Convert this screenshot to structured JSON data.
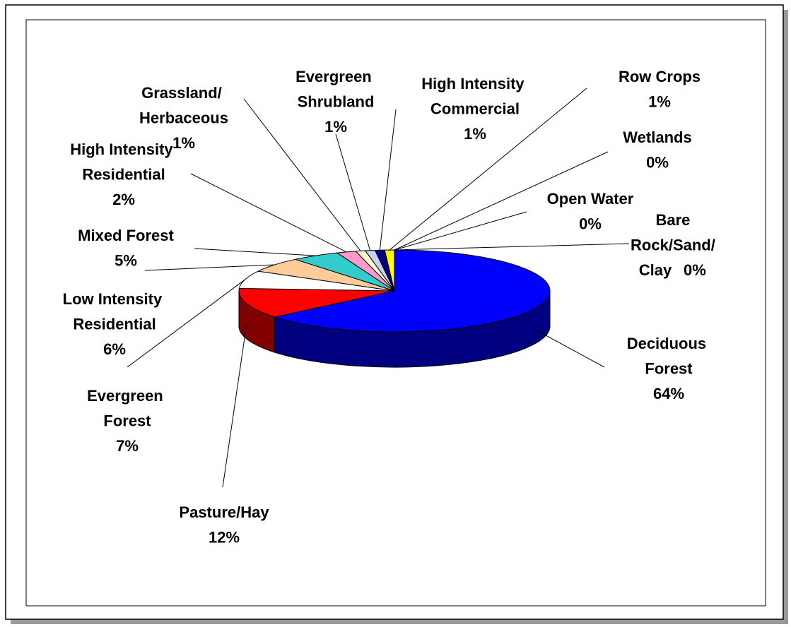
{
  "chart_data": {
    "type": "pie",
    "categories": [
      "Deciduous\nForest",
      "Pasture/Hay",
      "Evergreen\nForest",
      "Low Intensity\nResidential",
      "Mixed Forest",
      "High Intensity\nResidential",
      "Grassland/\nHerbaceous",
      "Evergreen\nShrubland",
      "High Intensity\nCommercial",
      "Row Crops",
      "Wetlands",
      "Open Water",
      "Bare\nRock/Sand/\nClay"
    ],
    "values": [
      64,
      12,
      7,
      6,
      5,
      2,
      1,
      1,
      1,
      1,
      0,
      0,
      0
    ],
    "value_labels": [
      "64%",
      "12%",
      "7%",
      "6%",
      "5%",
      "2%",
      "1%",
      "1%",
      "1%",
      "1%",
      "0%",
      "0%",
      "0%"
    ],
    "colors": [
      "#0000ff",
      "#ff0000",
      "#ffffff",
      "#ffcc99",
      "#33cccc",
      "#ff99cc",
      "#ffffcc",
      "#ccccff",
      "#000080",
      "#ffff00",
      "#ff00ff",
      "#00ffff",
      "#800000"
    ]
  }
}
